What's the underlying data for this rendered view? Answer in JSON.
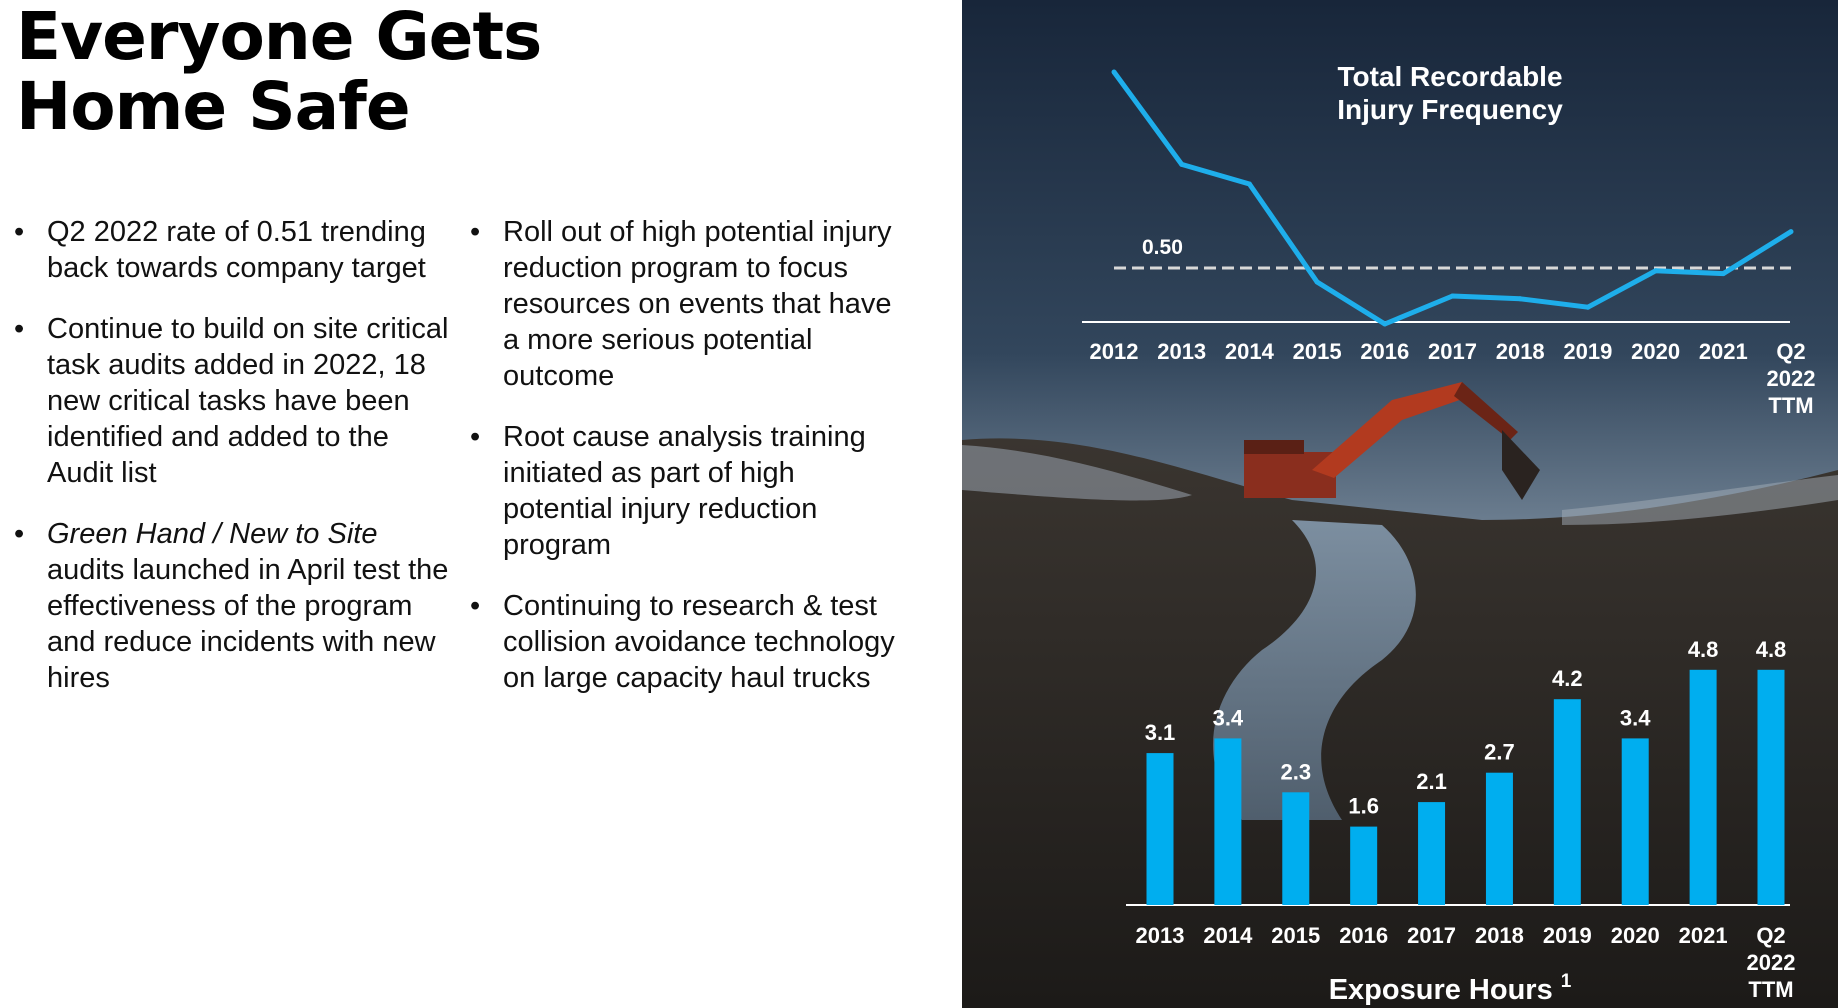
{
  "slide": {
    "title_lines": [
      "Everyone Gets",
      "Home Safe"
    ]
  },
  "bullets_left": [
    {
      "text": "Q2 2022 rate of 0.51 trending back towards company target"
    },
    {
      "text": "Continue to build on site critical task audits added in 2022, 18 new critical tasks have been identified and added to the Audit list"
    },
    {
      "italic": "Green Hand / New to Site",
      "text": " audits launched in April test the effectiveness of the program and reduce incidents with new hires"
    }
  ],
  "bullets_right": [
    {
      "text": "Roll out of high potential injury reduction program to focus resources on events that have a more serious potential outcome"
    },
    {
      "text": "Root cause analysis training initiated as part of high potential injury reduction program"
    },
    {
      "text": "Continuing to research & test collision avoidance technology on large capacity haul trucks"
    }
  ],
  "bullet_char": "•",
  "colors": {
    "accent": "#1eaeeb",
    "bar": "#00aeef",
    "text_on_photo": "#ffffff",
    "target_line": "#d8d8d8"
  },
  "chart_data": [
    {
      "type": "line",
      "title_lines": [
        "Total Recordable",
        "Injury Frequency"
      ],
      "categories": [
        "2012",
        "2013",
        "2014",
        "2015",
        "2016",
        "2017",
        "2018",
        "2019",
        "2020",
        "2021",
        "Q2 2022 TTM"
      ],
      "category_lines": [
        [
          "2012"
        ],
        [
          "2013"
        ],
        [
          "2014"
        ],
        [
          "2015"
        ],
        [
          "2016"
        ],
        [
          "2017"
        ],
        [
          "2018"
        ],
        [
          "2019"
        ],
        [
          "2020"
        ],
        [
          "2021"
        ],
        [
          "Q2",
          "2022",
          "TTM"
        ]
      ],
      "values": [
        1.2,
        0.87,
        0.8,
        0.45,
        0.3,
        0.4,
        0.39,
        0.36,
        0.49,
        0.48,
        0.63
      ],
      "reference_line": {
        "value": 0.5,
        "label": "0.50",
        "style": "dashed"
      },
      "ylim": [
        0.2,
        1.3
      ],
      "legend": "none",
      "grid": false
    },
    {
      "type": "bar",
      "caption": "Exposure Hours",
      "footnote": "1",
      "categories": [
        "2013",
        "2014",
        "2015",
        "2016",
        "2017",
        "2018",
        "2019",
        "2020",
        "2021",
        "Q2 2022 TTM"
      ],
      "category_lines": [
        [
          "2013"
        ],
        [
          "2014"
        ],
        [
          "2015"
        ],
        [
          "2016"
        ],
        [
          "2017"
        ],
        [
          "2018"
        ],
        [
          "2019"
        ],
        [
          "2020"
        ],
        [
          "2021"
        ],
        [
          "Q2",
          "2022",
          "TTM"
        ]
      ],
      "values": [
        3.1,
        3.4,
        2.3,
        1.6,
        2.1,
        2.7,
        4.2,
        3.4,
        4.8,
        4.8
      ],
      "value_labels": [
        "3.1",
        "3.4",
        "2.3",
        "1.6",
        "2.1",
        "2.7",
        "4.2",
        "3.4",
        "4.8",
        "4.8"
      ],
      "ylim": [
        0,
        5.5
      ],
      "legend": "none",
      "grid": false
    }
  ]
}
